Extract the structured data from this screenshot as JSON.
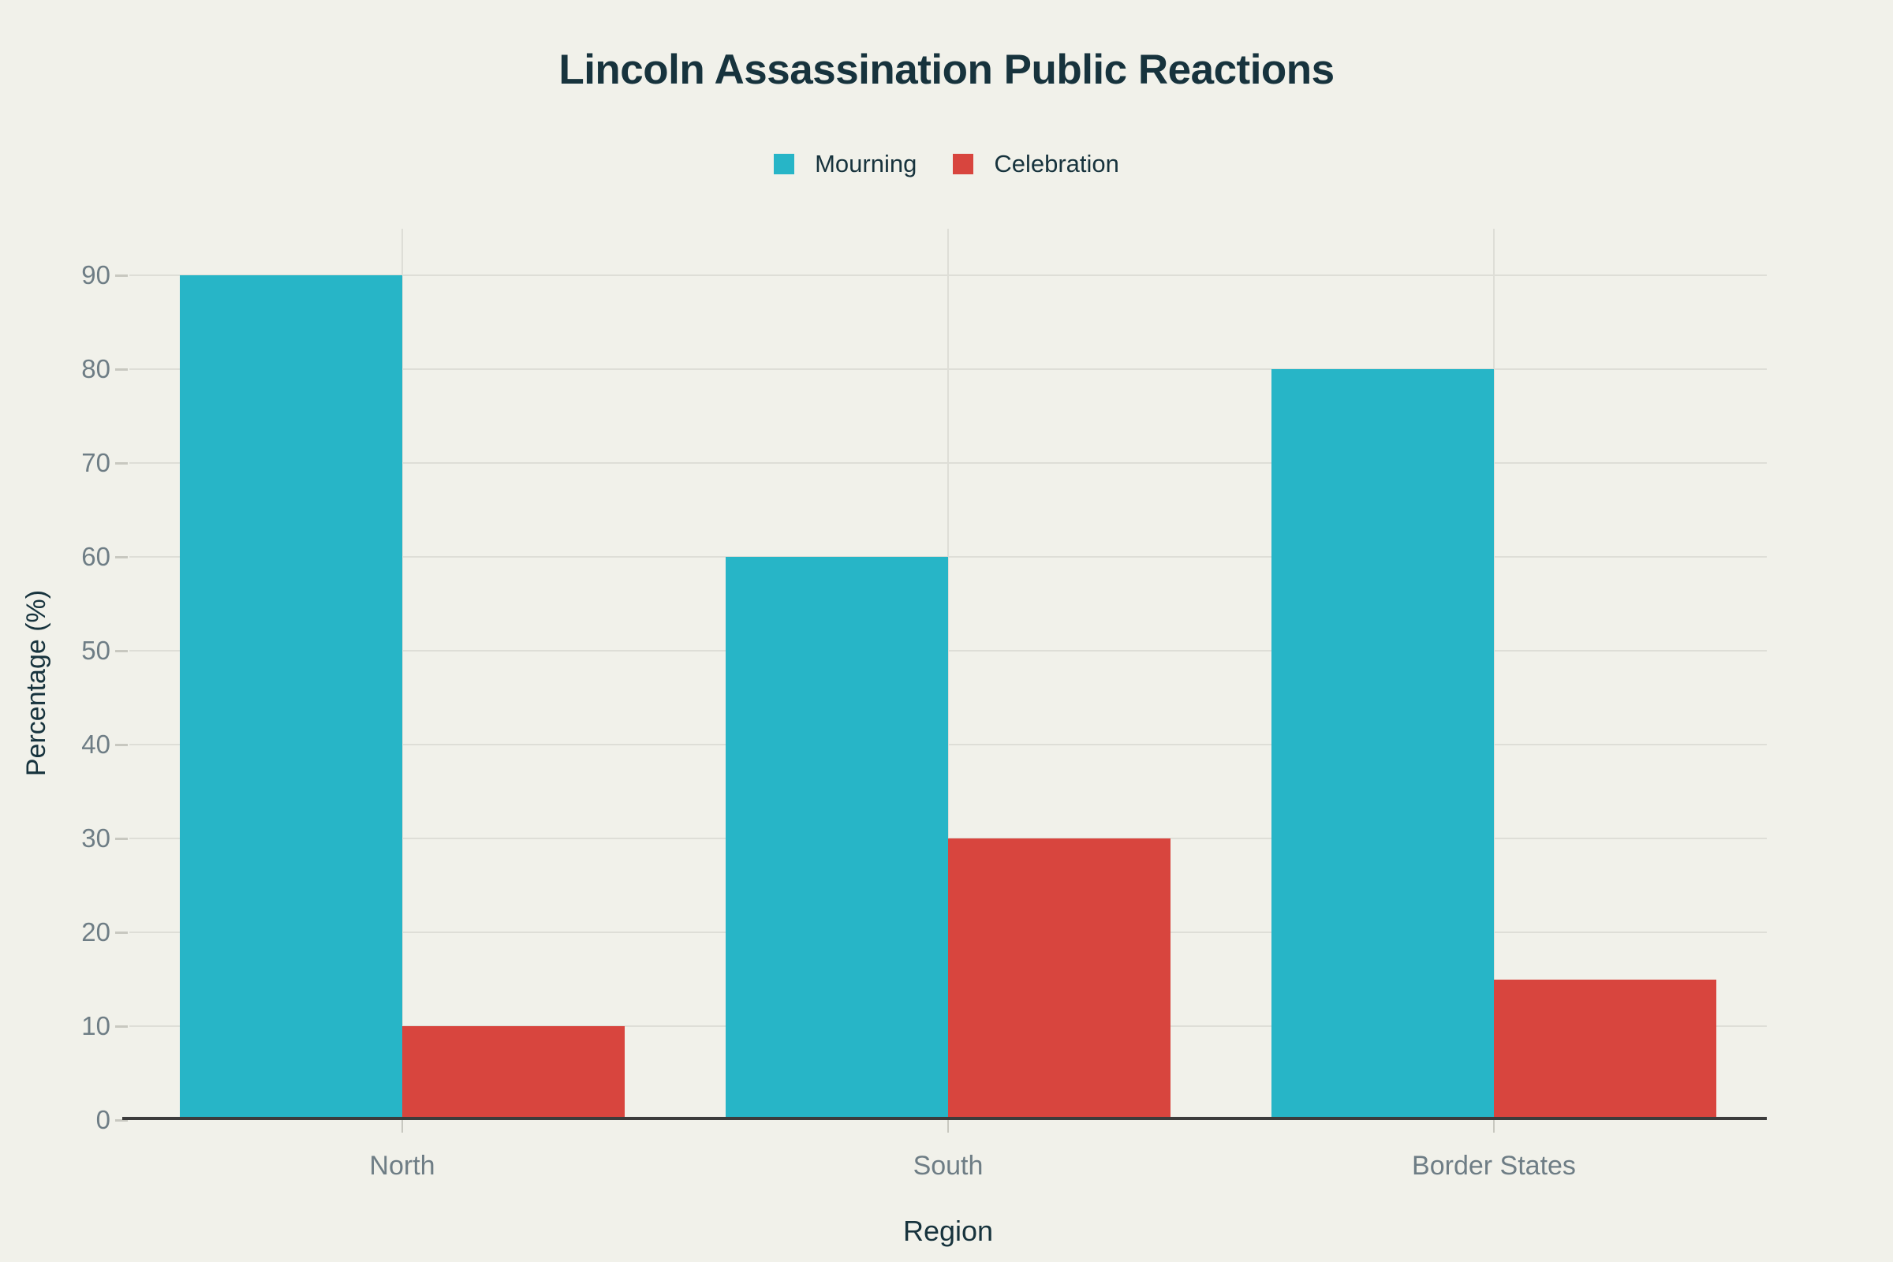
{
  "chart_data": {
    "type": "bar",
    "title": "Lincoln Assassination Public Reactions",
    "xlabel": "Region",
    "ylabel": "Percentage (%)",
    "categories": [
      "North",
      "South",
      "Border States"
    ],
    "series": [
      {
        "name": "Mourning",
        "color": "#27b5c7",
        "values": [
          90,
          60,
          80
        ]
      },
      {
        "name": "Celebration",
        "color": "#d8453e",
        "values": [
          10,
          30,
          15
        ]
      }
    ],
    "ylim": [
      0,
      95
    ],
    "yticks": [
      0,
      10,
      20,
      30,
      40,
      50,
      60,
      70,
      80,
      90
    ],
    "grid": true,
    "legend_position": "top",
    "colors": {
      "background": "#f1f1ea",
      "title_text": "#17333d",
      "tick_label_text": "#6e7d85",
      "gridline": "#deded7",
      "tick_mark": "#c8c8c0",
      "axis_line": "#3c3c3c"
    }
  }
}
